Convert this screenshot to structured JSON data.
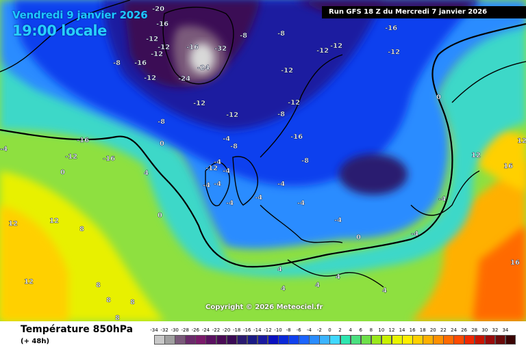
{
  "header": {
    "date": "Vendredi 9 janvier 2026",
    "time": "19:00 locale",
    "run": "Run GFS 18 Z du Mercredi 7 janvier 2026"
  },
  "copyright": "Copyright © 2026 Meteociel.fr",
  "footer": {
    "title": "Température 850hPa",
    "subtitle": "(+ 48h)"
  },
  "legend": {
    "values": [
      "-34",
      "-32",
      "-30",
      "-28",
      "-26",
      "-24",
      "-22",
      "-20",
      "-18",
      "-16",
      "-14",
      "-12",
      "-10",
      "-8",
      "-6",
      "-4",
      "-2",
      "0",
      "2",
      "4",
      "6",
      "8",
      "10",
      "12",
      "14",
      "16",
      "18",
      "20",
      "22",
      "24",
      "26",
      "28",
      "30",
      "32",
      "34"
    ],
    "colors": [
      "#c8c8c8",
      "#a0a0a0",
      "#7a5a7a",
      "#6a2a6a",
      "#7a1a6a",
      "#5a1060",
      "#4a0a55",
      "#3a0a55",
      "#2a1a70",
      "#1a1a85",
      "#1a1aa0",
      "#0a10c0",
      "#0a28d8",
      "#1040ee",
      "#1c64ff",
      "#2a8cff",
      "#3cb4ff",
      "#40d8ff",
      "#2ee6b0",
      "#4ae080",
      "#6ee04a",
      "#9ae81c",
      "#c8f000",
      "#e8f400",
      "#ffee00",
      "#ffd000",
      "#ffb000",
      "#ff9000",
      "#ff6a00",
      "#ff4a00",
      "#f02800",
      "#c81400",
      "#9a0a0a",
      "#6a0a0a",
      "#3a0404"
    ]
  },
  "map_labels": [
    "-20",
    "-16",
    "-12",
    "-12",
    "-12",
    "-8",
    "-16",
    "-12",
    "-32",
    "-24",
    "-24",
    "-16",
    "-8",
    "-8",
    "-12",
    "-12",
    "-12",
    "-16",
    "-12",
    "-12",
    "-8",
    "-12",
    "-8",
    "-16",
    "-12",
    "-8",
    "-4",
    "-8",
    "-16",
    "-16",
    "-12",
    "-12",
    "-4",
    "-4",
    "-4",
    "-4",
    "-4",
    "-4",
    "-4",
    "-4",
    "-4",
    "-4",
    "-4",
    "-4",
    "0",
    "0",
    "0",
    "0",
    "0",
    "4",
    "4",
    "4",
    "4",
    "4",
    "4",
    "8",
    "8",
    "8",
    "8",
    "8",
    "12",
    "12",
    "12",
    "12",
    "12",
    "16",
    "16"
  ]
}
